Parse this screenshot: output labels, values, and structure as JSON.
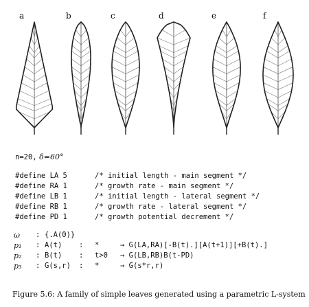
{
  "leaves": [
    {
      "label": "a"
    },
    {
      "label": "b"
    },
    {
      "label": "c"
    },
    {
      "label": "d"
    },
    {
      "label": "e"
    },
    {
      "label": "f"
    }
  ],
  "params": {
    "n": "n=20,",
    "delta": "δ=60°"
  },
  "defines": [
    {
      "def": "#define LA 5",
      "comment": "/* initial length - main segment */"
    },
    {
      "def": "#define RA 1",
      "comment": "/* growth rate - main segment */"
    },
    {
      "def": "#define LB 1",
      "comment": "/* initial length - lateral segment */"
    },
    {
      "def": "#define RB 1",
      "comment": "/* growth rate - lateral segment */"
    },
    {
      "def": "#define PD 1",
      "comment": "/* growth potential decrement */"
    }
  ],
  "rules": [
    {
      "label": "ω",
      "sep": ":",
      "predecessor": "{.A(0)}",
      "sep2": "",
      "condition": "",
      "successor": ""
    },
    {
      "label": "p₁",
      "sep": ":",
      "predecessor": "A(t)",
      "sep2": ":",
      "condition": "*",
      "successor": "→ G(LA,RA)[-B(t).][A(t+1)][+B(t).]"
    },
    {
      "label": "p₂",
      "sep": ":",
      "predecessor": "B(t)",
      "sep2": ":",
      "condition": "t>0",
      "successor": "→ G(LB,RB)B(t-PD)"
    },
    {
      "label": "p₃",
      "sep": ":",
      "predecessor": "G(s,r)",
      "sep2": ":",
      "condition": "*",
      "successor": "→ G(s*r,r)"
    }
  ],
  "caption": "Figure 5.6: A family of simple leaves generated using a parametric L-system"
}
